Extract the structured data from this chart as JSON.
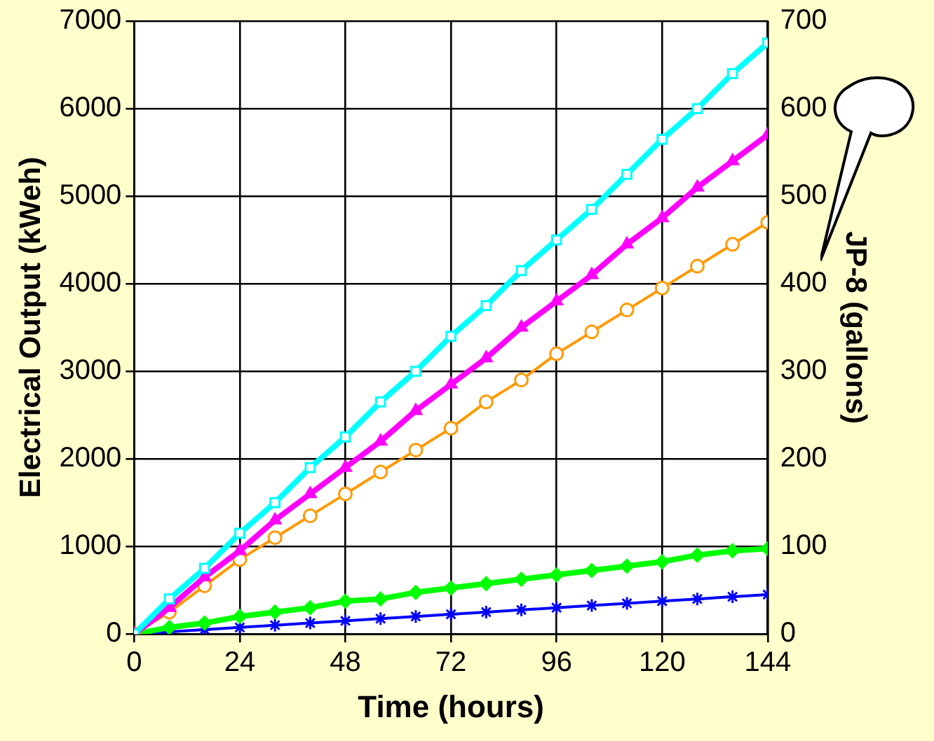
{
  "chart_data": {
    "type": "line",
    "xlabel": "Time (hours)",
    "ylabel": "Electrical Output (kWeh)",
    "y2label": "JP-8 (gallons)",
    "x": [
      0,
      8,
      16,
      24,
      32,
      40,
      48,
      56,
      64,
      72,
      80,
      88,
      96,
      104,
      112,
      120,
      128,
      136,
      144
    ],
    "series": [
      {
        "color": "#00ffff",
        "marker": "square",
        "values": [
          0,
          400,
          750,
          1150,
          1500,
          1900,
          2250,
          2650,
          3000,
          3400,
          3750,
          4150,
          4500,
          4850,
          5250,
          5650,
          6000,
          6400,
          6750
        ]
      },
      {
        "color": "#ff00ff",
        "marker": "triangle",
        "values": [
          0,
          300,
          650,
          950,
          1300,
          1600,
          1900,
          2200,
          2550,
          2850,
          3150,
          3500,
          3800,
          4100,
          4450,
          4750,
          5100,
          5400,
          5700
        ]
      },
      {
        "color": "#ff9900",
        "marker": "circle",
        "values": [
          0,
          250,
          550,
          850,
          1100,
          1350,
          1600,
          1850,
          2100,
          2350,
          2650,
          2900,
          3200,
          3450,
          3700,
          3950,
          4200,
          4450,
          4700
        ]
      },
      {
        "color": "#00ff00",
        "marker": "diamond",
        "values": [
          0,
          75,
          125,
          200,
          250,
          300,
          375,
          400,
          475,
          525,
          575,
          625,
          675,
          725,
          775,
          825,
          900,
          950,
          975
        ]
      },
      {
        "color": "#0000ff",
        "marker": "cross",
        "values": [
          0,
          25,
          50,
          75,
          100,
          125,
          150,
          175,
          200,
          225,
          250,
          275,
          300,
          325,
          350,
          375,
          400,
          425,
          450
        ]
      }
    ],
    "xlim": [
      0,
      144
    ],
    "xticks": [
      0,
      24,
      48,
      72,
      96,
      120,
      144
    ],
    "ylim": [
      0,
      7000
    ],
    "yticks": [
      0,
      1000,
      2000,
      3000,
      4000,
      5000,
      6000,
      7000
    ],
    "y2lim": [
      0,
      700
    ],
    "y2ticks": [
      0,
      100,
      200,
      300,
      400,
      500,
      600,
      700
    ],
    "grid": true,
    "legend": false
  }
}
